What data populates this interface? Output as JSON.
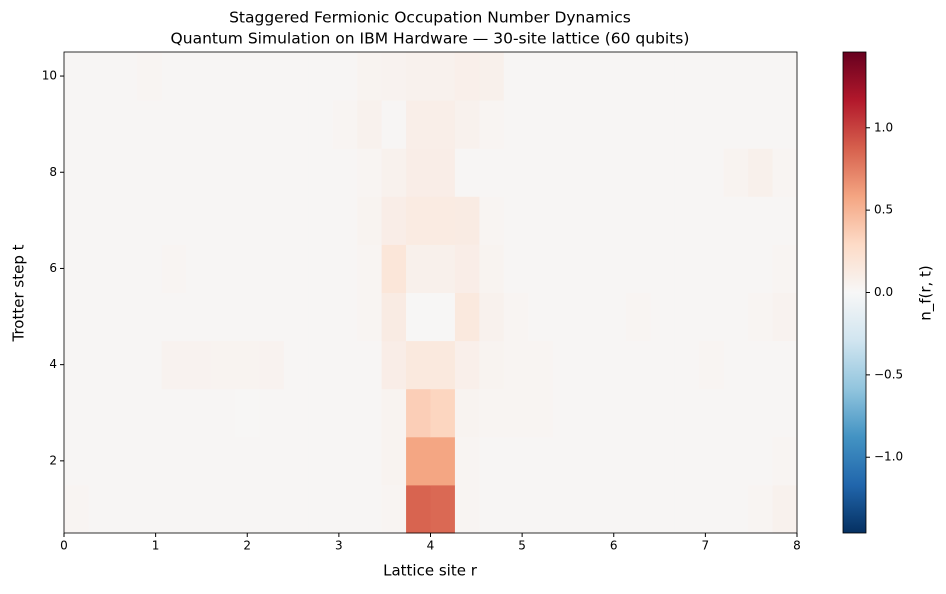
{
  "chart_data": {
    "type": "heatmap",
    "title": "Staggered Fermionic Occupation Number Dynamics",
    "subtitle": "Quantum Simulation on IBM Hardware — 30-site lattice (60 qubits)",
    "x_label": "Lattice site r",
    "y_label": "Trotter step t",
    "colorbar_label": "n_f(r, t)",
    "xlim": [
      0,
      8
    ],
    "ylim": [
      0.5,
      10.5
    ],
    "xticks": [
      0,
      1,
      2,
      3,
      4,
      5,
      6,
      7,
      8
    ],
    "yticks": [
      2,
      4,
      6,
      8,
      10
    ],
    "y": [
      1,
      2,
      3,
      4,
      5,
      6,
      7,
      8,
      9,
      10
    ],
    "z": [
      [
        0.03,
        0.02,
        0.02,
        0.02,
        0.02,
        0.02,
        0.02,
        0.02,
        0.02,
        0.02,
        0.02,
        0.02,
        0.02,
        0.03,
        0.86,
        0.84,
        0.03,
        0.02,
        0.02,
        0.02,
        0.02,
        0.02,
        0.02,
        0.02,
        0.02,
        0.02,
        0.02,
        0.02,
        0.03,
        0.06
      ],
      [
        0.02,
        0.02,
        0.02,
        0.02,
        0.02,
        0.02,
        0.02,
        0.02,
        0.02,
        0.02,
        0.02,
        0.02,
        0.02,
        0.04,
        0.58,
        0.58,
        0.03,
        0.02,
        0.02,
        0.02,
        0.02,
        0.02,
        0.02,
        0.02,
        0.02,
        0.02,
        0.02,
        0.02,
        0.02,
        0.03
      ],
      [
        0.02,
        0.02,
        0.02,
        0.02,
        0.02,
        0.02,
        0.02,
        0.01,
        0.02,
        0.02,
        0.02,
        0.02,
        0.02,
        0.04,
        0.36,
        0.32,
        0.04,
        0.03,
        0.03,
        0.03,
        0.02,
        0.02,
        0.02,
        0.02,
        0.02,
        0.02,
        0.02,
        0.02,
        0.02,
        0.02
      ],
      [
        0.02,
        0.02,
        0.02,
        0.02,
        0.05,
        0.05,
        0.04,
        0.04,
        0.05,
        0.02,
        0.02,
        0.02,
        0.02,
        0.1,
        0.15,
        0.15,
        0.08,
        0.04,
        0.03,
        0.03,
        0.02,
        0.02,
        0.02,
        0.02,
        0.02,
        0.02,
        0.03,
        0.02,
        0.02,
        0.02
      ],
      [
        0.02,
        0.02,
        0.02,
        0.02,
        0.02,
        0.02,
        0.02,
        0.02,
        0.02,
        0.02,
        0.02,
        0.02,
        0.03,
        0.12,
        0.01,
        0.01,
        0.15,
        0.06,
        0.03,
        0.02,
        0.02,
        0.02,
        0.02,
        0.03,
        0.02,
        0.02,
        0.02,
        0.02,
        0.03,
        0.05
      ],
      [
        0.02,
        0.02,
        0.02,
        0.02,
        0.03,
        0.02,
        0.02,
        0.02,
        0.02,
        0.02,
        0.02,
        0.02,
        0.03,
        0.18,
        0.07,
        0.07,
        0.1,
        0.04,
        0.02,
        0.02,
        0.02,
        0.02,
        0.02,
        0.02,
        0.02,
        0.02,
        0.02,
        0.02,
        0.02,
        0.03
      ],
      [
        0.02,
        0.02,
        0.02,
        0.02,
        0.02,
        0.02,
        0.02,
        0.02,
        0.02,
        0.02,
        0.02,
        0.02,
        0.04,
        0.1,
        0.13,
        0.13,
        0.12,
        0.03,
        0.02,
        0.02,
        0.02,
        0.02,
        0.02,
        0.02,
        0.02,
        0.02,
        0.02,
        0.02,
        0.02,
        0.02
      ],
      [
        0.02,
        0.02,
        0.02,
        0.02,
        0.02,
        0.02,
        0.02,
        0.02,
        0.02,
        0.02,
        0.02,
        0.02,
        0.03,
        0.06,
        0.1,
        0.1,
        0.02,
        0.02,
        0.02,
        0.02,
        0.02,
        0.02,
        0.02,
        0.02,
        0.02,
        0.02,
        0.02,
        0.04,
        0.07,
        0.03
      ],
      [
        0.02,
        0.02,
        0.02,
        0.02,
        0.02,
        0.02,
        0.02,
        0.02,
        0.02,
        0.02,
        0.02,
        0.03,
        0.06,
        0.02,
        0.09,
        0.09,
        0.06,
        0.03,
        0.02,
        0.02,
        0.02,
        0.02,
        0.02,
        0.02,
        0.02,
        0.02,
        0.02,
        0.02,
        0.02,
        0.02
      ],
      [
        0.02,
        0.02,
        0.02,
        0.03,
        0.02,
        0.02,
        0.02,
        0.02,
        0.02,
        0.02,
        0.02,
        0.02,
        0.04,
        0.05,
        0.06,
        0.06,
        0.08,
        0.07,
        0.02,
        0.02,
        0.02,
        0.02,
        0.02,
        0.02,
        0.02,
        0.02,
        0.02,
        0.02,
        0.02,
        0.02
      ]
    ],
    "colorbar": {
      "lim": [
        -1.46,
        1.46
      ],
      "ticks": [
        {
          "value": -1,
          "label": "−1.0"
        },
        {
          "value": -0.5,
          "label": "−0.5"
        },
        {
          "value": 0,
          "label": "0.0"
        },
        {
          "value": 0.5,
          "label": "0.5"
        },
        {
          "value": 1,
          "label": "1.0"
        }
      ],
      "colors": [
        "#053061",
        "#2166ac",
        "#4393c3",
        "#92c5de",
        "#d1e5f0",
        "#f7f7f7",
        "#fddbc7",
        "#f4a582",
        "#d6604d",
        "#b2182b",
        "#67001f"
      ]
    }
  }
}
